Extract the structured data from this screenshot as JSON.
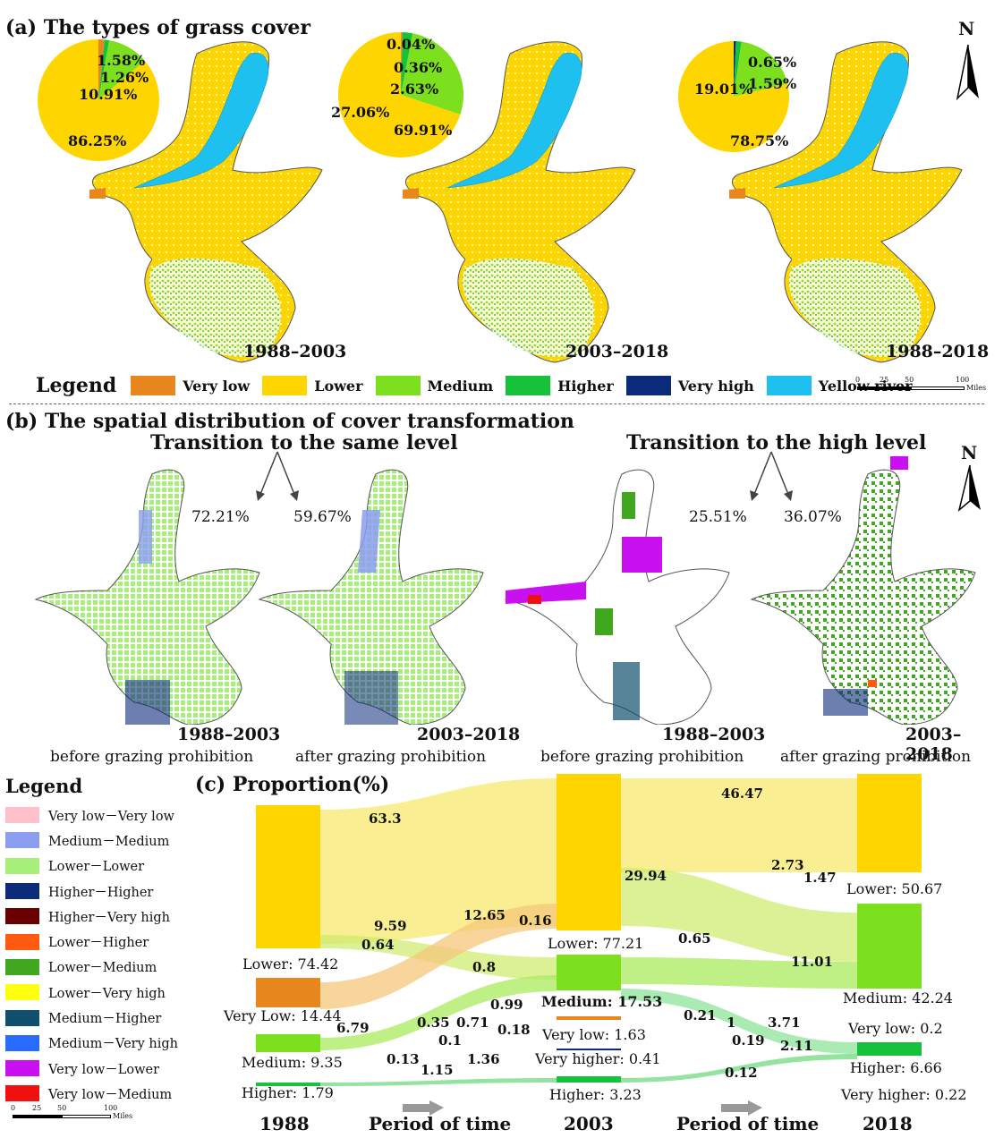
{
  "panel_a": {
    "title": "(a) The types of grass cover",
    "north": "N",
    "maps": [
      {
        "period": "1988–2003",
        "pie": [
          {
            "label": "86.25%",
            "value": 86.25,
            "color": "#FFD500"
          },
          {
            "label": "10.91%",
            "value": 10.91,
            "color": "#7CE01E"
          },
          {
            "label": "1.26%",
            "value": 1.26,
            "color": "#15C23A"
          },
          {
            "label": "1.58%",
            "value": 1.58,
            "color": "#E8871E"
          }
        ]
      },
      {
        "period": "2003–2018",
        "pie": [
          {
            "label": "69.91%",
            "value": 69.91,
            "color": "#FFD500"
          },
          {
            "label": "27.06%",
            "value": 27.06,
            "color": "#7CE01E"
          },
          {
            "label": "2.63%",
            "value": 2.63,
            "color": "#15C23A"
          },
          {
            "label": "0.36%",
            "value": 0.36,
            "color": "#E8871E"
          },
          {
            "label": "0.04%",
            "value": 0.04,
            "color": "#0B2A7A"
          }
        ]
      },
      {
        "period": "1988–2018",
        "pie": [
          {
            "label": "78.75%",
            "value": 78.75,
            "color": "#FFD500"
          },
          {
            "label": "19.01%",
            "value": 19.01,
            "color": "#7CE01E"
          },
          {
            "label": "1.59%",
            "value": 1.59,
            "color": "#15C23A"
          },
          {
            "label": "0.65%",
            "value": 0.65,
            "color": "#0B2A7A"
          }
        ]
      }
    ],
    "legend_title": "Legend",
    "legend": [
      {
        "label": "Very low",
        "color": "#E8871E"
      },
      {
        "label": "Lower",
        "color": "#FFD500"
      },
      {
        "label": "Medium",
        "color": "#7CE01E"
      },
      {
        "label": "Higher",
        "color": "#15C23A"
      },
      {
        "label": "Very high",
        "color": "#0B2A7A"
      },
      {
        "label": "Yellow river",
        "color": "#1EC0F0"
      }
    ],
    "scale": {
      "ticks": [
        "0",
        "25",
        "50",
        "100"
      ],
      "unit": "Miles"
    }
  },
  "panel_b": {
    "title": "(b) The spatial distribution of cover transformation",
    "same_level_title": "Transition to the same level",
    "high_level_title": "Transition to the high level",
    "north": "N",
    "pct_same_1": "72.21%",
    "pct_same_2": "59.67%",
    "pct_high_1": "25.51%",
    "pct_high_2": "36.07%",
    "maps": [
      {
        "period": "1988–2003",
        "caption": "before grazing prohibition"
      },
      {
        "period": "2003–2018",
        "caption": "after grazing prohibition"
      },
      {
        "period": "1988–2003",
        "caption": "before grazing prohibition"
      },
      {
        "period": "2003–2018",
        "caption": "after grazing prohibition"
      }
    ],
    "legend_title": "Legend",
    "legend": [
      {
        "label": "Very low－Very low",
        "color": "#FFC0CB"
      },
      {
        "label": "Medium－Medium",
        "color": "#8C9EF0"
      },
      {
        "label": "Lower－Lower",
        "color": "#A6F07A"
      },
      {
        "label": "Higher－Higher",
        "color": "#0B2A7A"
      },
      {
        "label": "Higher－Very high",
        "color": "#6B0000"
      },
      {
        "label": "Lower－Higher",
        "color": "#FF5A10"
      },
      {
        "label": "Lower－Medium",
        "color": "#3FA81E"
      },
      {
        "label": "Lower－Very high",
        "color": "#FFFF10"
      },
      {
        "label": "Medium－Higher",
        "color": "#10506E"
      },
      {
        "label": "Medium－Very high",
        "color": "#2A6BFF"
      },
      {
        "label": "Very low－Lower",
        "color": "#C810F0"
      },
      {
        "label": "Very low－Medium",
        "color": "#F01010"
      }
    ],
    "scale": {
      "ticks": [
        "0",
        "25",
        "50",
        "100"
      ],
      "unit": "Miles"
    }
  },
  "panel_c": {
    "title": "(c) Proportion(%)",
    "years": [
      "1988",
      "2003",
      "2018"
    ],
    "period_label": "Period of time",
    "nodes_1988": [
      {
        "label": "Lower: 74.42",
        "color": "#FFD500"
      },
      {
        "label": "Very Low: 14.44",
        "color": "#E8871E"
      },
      {
        "label": "Medium: 9.35",
        "color": "#7CE01E"
      },
      {
        "label": "Higher: 1.79",
        "color": "#15C23A"
      }
    ],
    "nodes_2003": [
      {
        "label": "Lower: 77.21",
        "color": "#FFD500"
      },
      {
        "label": "Medium: 17.53",
        "color": "#7CE01E"
      },
      {
        "label": "Very low: 1.63",
        "color": "#E8871E"
      },
      {
        "label": "Very higher: 0.41",
        "color": "#0B2A7A"
      },
      {
        "label": "Higher: 3.23",
        "color": "#15C23A"
      }
    ],
    "nodes_2018": [
      {
        "label": "Lower: 50.67",
        "color": "#FFD500"
      },
      {
        "label": "Medium: 42.24",
        "color": "#7CE01E"
      },
      {
        "label": "Very low: 0.2",
        "color": "#E8871E"
      },
      {
        "label": "Higher: 6.66",
        "color": "#15C23A"
      },
      {
        "label": "Very higher: 0.22",
        "color": "#0B2A7A"
      }
    ],
    "flow_labels": [
      "63.3",
      "9.59",
      "0.64",
      "12.65",
      "0.16",
      "0.8",
      "0.99",
      "6.79",
      "0.35",
      "0.71",
      "0.18",
      "0.1",
      "0.13",
      "1.15",
      "1.36",
      "46.47",
      "29.94",
      "2.73",
      "1.47",
      "0.65",
      "11.01",
      "0.21",
      "1",
      "3.71",
      "0.19",
      "2.11",
      "0.12"
    ]
  }
}
